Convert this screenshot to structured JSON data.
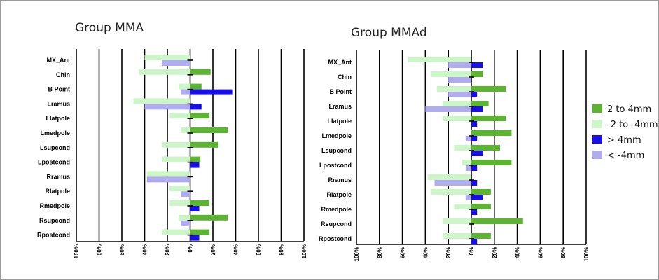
{
  "colors": {
    "pos_small": "#5bb531",
    "neg_small": "#ccf5c8",
    "pos_large": "#1a0ee8",
    "neg_large": "#b1acef",
    "grid": "#000000"
  },
  "legend": {
    "items": [
      {
        "key": "pos_small",
        "label": "2 to 4mm"
      },
      {
        "key": "neg_small",
        "label": "-2 to -4mm"
      },
      {
        "key": "pos_large",
        "label": "> 4mm"
      },
      {
        "key": "neg_large",
        "label": "< -4mm"
      }
    ]
  },
  "chart_data": [
    {
      "type": "bar",
      "orientation": "horizontal",
      "stacked": false,
      "title": "Group MMA",
      "categories": [
        "MX_Ant",
        "Chin",
        "B Point",
        "Lramus",
        "Llatpole",
        "Lmedpole",
        "Lsupcond",
        "Lpostcond",
        "Rramus",
        "Rlatpole",
        "Rmedpole",
        "Rsupcond",
        "Rpostcond"
      ],
      "xlim": [
        -100,
        100
      ],
      "x_ticks": [
        -100,
        -80,
        -60,
        -40,
        -20,
        0,
        20,
        40,
        60,
        80,
        100
      ],
      "x_tick_labels": [
        "100%",
        "80%",
        "60%",
        "40%",
        "20%",
        "0%",
        "20%",
        "40%",
        "60%",
        "80%",
        "100%"
      ],
      "grid": true,
      "series": [
        {
          "name": "2 to 4mm",
          "values": [
            0,
            18,
            10,
            0,
            17,
            33,
            25,
            9,
            0,
            0,
            17,
            33,
            17
          ]
        },
        {
          "name": "-2 to -4mm",
          "values": [
            -40,
            -45,
            -10,
            -50,
            -18,
            -8,
            -25,
            -25,
            -38,
            -18,
            -18,
            -10,
            -25
          ]
        },
        {
          "name": "> 4mm",
          "values": [
            0,
            0,
            37,
            10,
            0,
            0,
            0,
            8,
            0,
            0,
            8,
            0,
            8
          ]
        },
        {
          "name": "< -4mm",
          "values": [
            -25,
            0,
            -8,
            -40,
            0,
            0,
            0,
            0,
            -38,
            -8,
            0,
            -8,
            0
          ]
        }
      ]
    },
    {
      "type": "bar",
      "orientation": "horizontal",
      "stacked": false,
      "title": "Group MMAd",
      "categories": [
        "MX_Ant",
        "Chin",
        "B Point",
        "Lramus",
        "Llatpole",
        "Lmedpole",
        "Lsupcond",
        "Lpostcond",
        "Rramus",
        "Rlatpole",
        "Rmedpole",
        "Rsupcond",
        "Rpostcond"
      ],
      "xlim": [
        -100,
        100
      ],
      "x_ticks": [
        -100,
        -80,
        -60,
        -40,
        -20,
        0,
        20,
        40,
        60,
        80,
        100
      ],
      "x_tick_labels": [
        "100%",
        "80%",
        "60%",
        "40%",
        "20%",
        "0%",
        "20%",
        "40%",
        "60%",
        "80%",
        "100%"
      ],
      "grid": true,
      "series": [
        {
          "name": "2 to 4mm",
          "values": [
            0,
            10,
            30,
            15,
            30,
            35,
            25,
            35,
            0,
            17,
            17,
            45,
            17
          ]
        },
        {
          "name": "-2 to -4mm",
          "values": [
            -55,
            -35,
            -30,
            -25,
            -25,
            0,
            -15,
            -8,
            -38,
            -35,
            -15,
            -25,
            -25
          ]
        },
        {
          "name": "> 4mm",
          "values": [
            10,
            0,
            5,
            10,
            5,
            5,
            10,
            5,
            5,
            10,
            5,
            0,
            5
          ]
        },
        {
          "name": "< -4mm",
          "values": [
            -20,
            -20,
            -20,
            -40,
            0,
            -5,
            0,
            -5,
            -32,
            -5,
            0,
            0,
            0
          ]
        }
      ]
    }
  ]
}
